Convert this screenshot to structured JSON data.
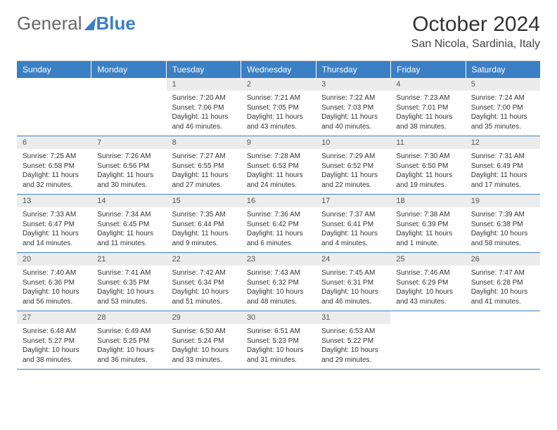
{
  "logo": {
    "text1": "General",
    "text2": "Blue"
  },
  "title": "October 2024",
  "location": "San Nicola, Sardinia, Italy",
  "colors": {
    "accent": "#3b7fc4",
    "dayNumBg": "#ececec",
    "text": "#333333"
  },
  "dayNames": [
    "Sunday",
    "Monday",
    "Tuesday",
    "Wednesday",
    "Thursday",
    "Friday",
    "Saturday"
  ],
  "weeks": [
    [
      null,
      null,
      {
        "n": "1",
        "sr": "7:20 AM",
        "ss": "7:06 PM",
        "dl": "11 hours and 46 minutes."
      },
      {
        "n": "2",
        "sr": "7:21 AM",
        "ss": "7:05 PM",
        "dl": "11 hours and 43 minutes."
      },
      {
        "n": "3",
        "sr": "7:22 AM",
        "ss": "7:03 PM",
        "dl": "11 hours and 40 minutes."
      },
      {
        "n": "4",
        "sr": "7:23 AM",
        "ss": "7:01 PM",
        "dl": "11 hours and 38 minutes."
      },
      {
        "n": "5",
        "sr": "7:24 AM",
        "ss": "7:00 PM",
        "dl": "11 hours and 35 minutes."
      }
    ],
    [
      {
        "n": "6",
        "sr": "7:25 AM",
        "ss": "6:58 PM",
        "dl": "11 hours and 32 minutes."
      },
      {
        "n": "7",
        "sr": "7:26 AM",
        "ss": "6:56 PM",
        "dl": "11 hours and 30 minutes."
      },
      {
        "n": "8",
        "sr": "7:27 AM",
        "ss": "6:55 PM",
        "dl": "11 hours and 27 minutes."
      },
      {
        "n": "9",
        "sr": "7:28 AM",
        "ss": "6:53 PM",
        "dl": "11 hours and 24 minutes."
      },
      {
        "n": "10",
        "sr": "7:29 AM",
        "ss": "6:52 PM",
        "dl": "11 hours and 22 minutes."
      },
      {
        "n": "11",
        "sr": "7:30 AM",
        "ss": "6:50 PM",
        "dl": "11 hours and 19 minutes."
      },
      {
        "n": "12",
        "sr": "7:31 AM",
        "ss": "6:49 PM",
        "dl": "11 hours and 17 minutes."
      }
    ],
    [
      {
        "n": "13",
        "sr": "7:33 AM",
        "ss": "6:47 PM",
        "dl": "11 hours and 14 minutes."
      },
      {
        "n": "14",
        "sr": "7:34 AM",
        "ss": "6:45 PM",
        "dl": "11 hours and 11 minutes."
      },
      {
        "n": "15",
        "sr": "7:35 AM",
        "ss": "6:44 PM",
        "dl": "11 hours and 9 minutes."
      },
      {
        "n": "16",
        "sr": "7:36 AM",
        "ss": "6:42 PM",
        "dl": "11 hours and 6 minutes."
      },
      {
        "n": "17",
        "sr": "7:37 AM",
        "ss": "6:41 PM",
        "dl": "11 hours and 4 minutes."
      },
      {
        "n": "18",
        "sr": "7:38 AM",
        "ss": "6:39 PM",
        "dl": "11 hours and 1 minute."
      },
      {
        "n": "19",
        "sr": "7:39 AM",
        "ss": "6:38 PM",
        "dl": "10 hours and 58 minutes."
      }
    ],
    [
      {
        "n": "20",
        "sr": "7:40 AM",
        "ss": "6:36 PM",
        "dl": "10 hours and 56 minutes."
      },
      {
        "n": "21",
        "sr": "7:41 AM",
        "ss": "6:35 PM",
        "dl": "10 hours and 53 minutes."
      },
      {
        "n": "22",
        "sr": "7:42 AM",
        "ss": "6:34 PM",
        "dl": "10 hours and 51 minutes."
      },
      {
        "n": "23",
        "sr": "7:43 AM",
        "ss": "6:32 PM",
        "dl": "10 hours and 48 minutes."
      },
      {
        "n": "24",
        "sr": "7:45 AM",
        "ss": "6:31 PM",
        "dl": "10 hours and 46 minutes."
      },
      {
        "n": "25",
        "sr": "7:46 AM",
        "ss": "6:29 PM",
        "dl": "10 hours and 43 minutes."
      },
      {
        "n": "26",
        "sr": "7:47 AM",
        "ss": "6:28 PM",
        "dl": "10 hours and 41 minutes."
      }
    ],
    [
      {
        "n": "27",
        "sr": "6:48 AM",
        "ss": "5:27 PM",
        "dl": "10 hours and 38 minutes."
      },
      {
        "n": "28",
        "sr": "6:49 AM",
        "ss": "5:25 PM",
        "dl": "10 hours and 36 minutes."
      },
      {
        "n": "29",
        "sr": "6:50 AM",
        "ss": "5:24 PM",
        "dl": "10 hours and 33 minutes."
      },
      {
        "n": "30",
        "sr": "6:51 AM",
        "ss": "5:23 PM",
        "dl": "10 hours and 31 minutes."
      },
      {
        "n": "31",
        "sr": "6:53 AM",
        "ss": "5:22 PM",
        "dl": "10 hours and 29 minutes."
      },
      null,
      null
    ]
  ],
  "labels": {
    "sunrise": "Sunrise:",
    "sunset": "Sunset:",
    "daylight": "Daylight:"
  }
}
